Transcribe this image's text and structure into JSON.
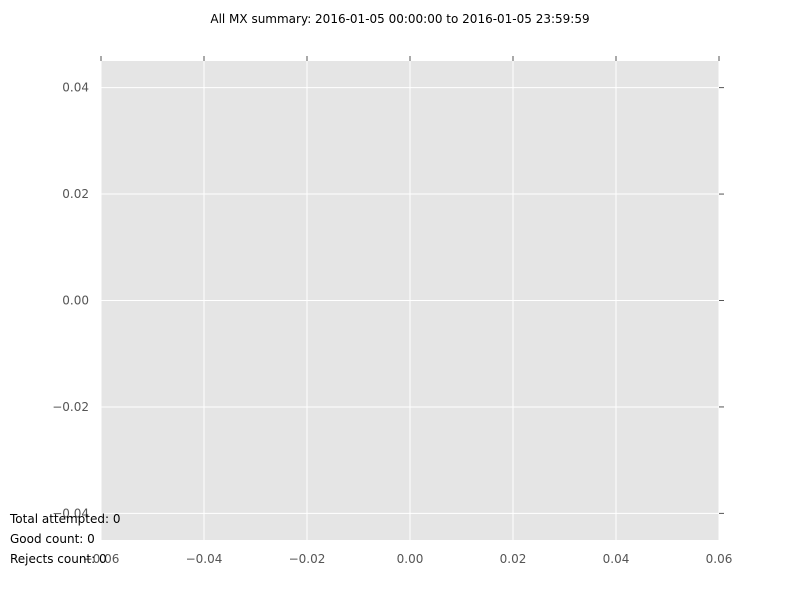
{
  "chart_data": {
    "type": "line",
    "title": "All MX summary: 2016-01-05 00:00:00 to 2016-01-05 23:59:59",
    "xlabel": "",
    "ylabel": "",
    "series": [],
    "xlim": [
      -0.06,
      0.06
    ],
    "ylim": [
      -0.045,
      0.045
    ],
    "x_ticks": [
      "−0.06",
      "−0.04",
      "−0.02",
      "0.00",
      "0.02",
      "0.04",
      "0.06"
    ],
    "x_tick_values": [
      -0.06,
      -0.04,
      -0.02,
      0.0,
      0.02,
      0.04,
      0.06
    ],
    "y_ticks": [
      "−0.04",
      "−0.02",
      "0.00",
      "0.02",
      "0.04"
    ],
    "y_tick_values": [
      -0.04,
      -0.02,
      0.0,
      0.02,
      0.04
    ],
    "grid": true,
    "colors": {
      "plot_background": "#e5e5e5",
      "grid": "#ffffff",
      "tick": "#555555"
    }
  },
  "summary": {
    "total_attempted": "Total attempted: 0",
    "good_count": "Good count: 0",
    "rejects_count": "Rejects count: 0"
  }
}
